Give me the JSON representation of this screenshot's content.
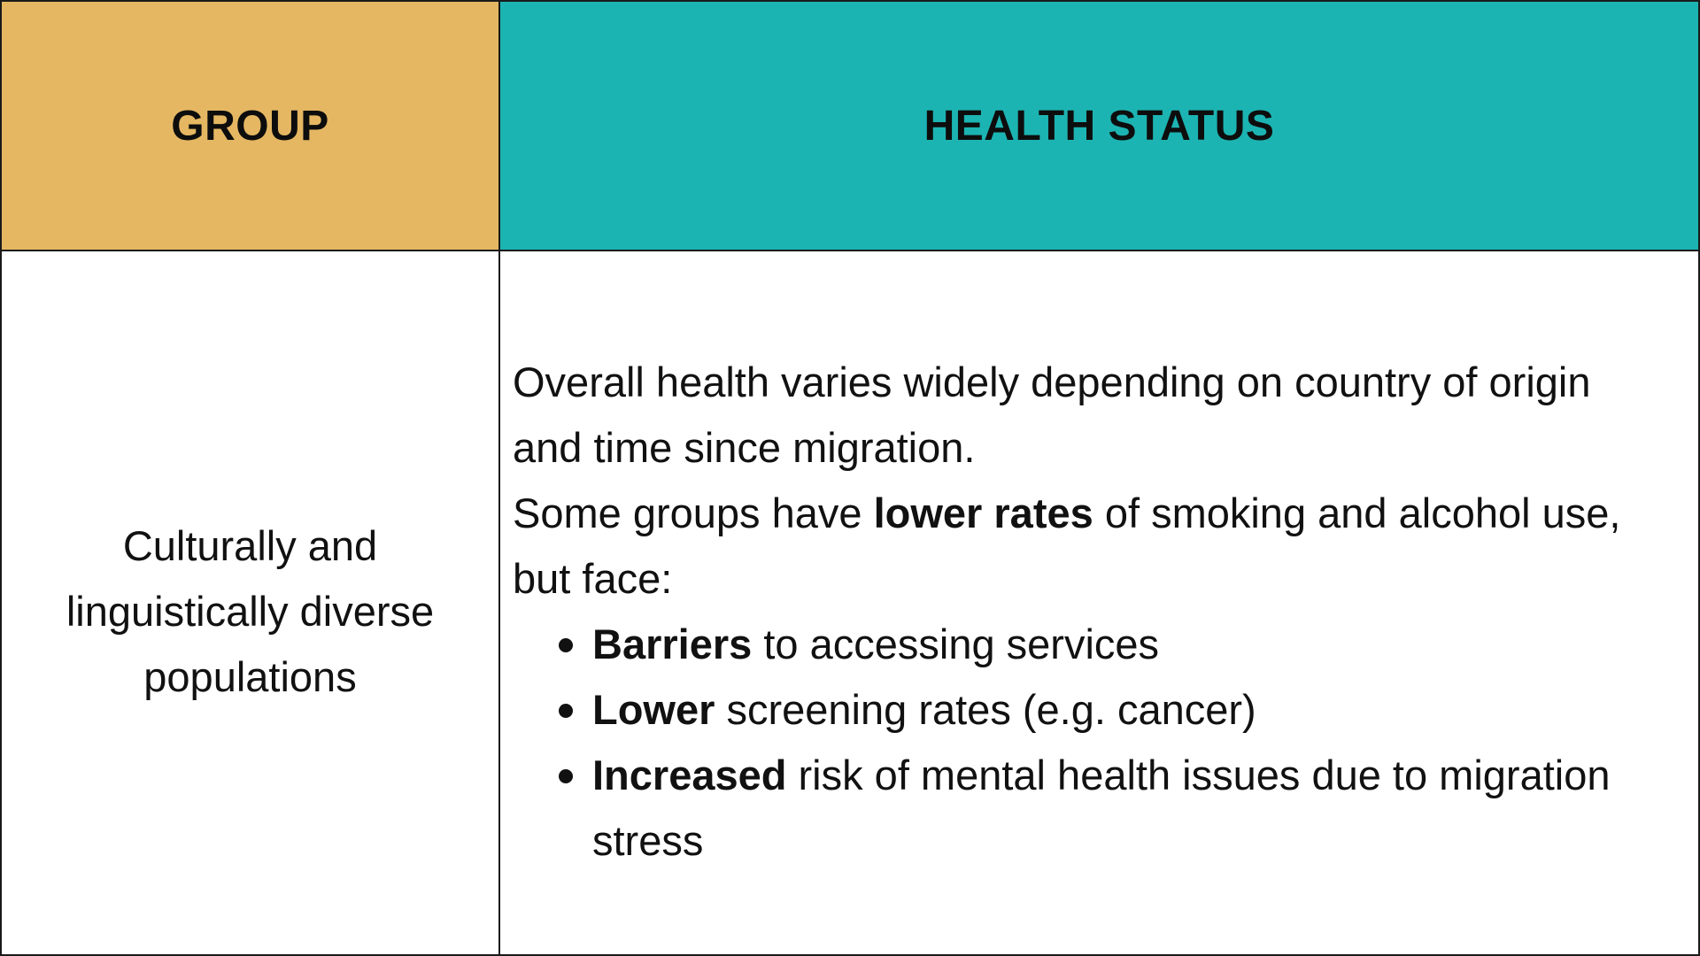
{
  "header": {
    "group_label": "GROUP",
    "status_label": "HEALTH STATUS"
  },
  "row": {
    "group": "Culturally and linguistically diverse populations",
    "status": {
      "para1": "Overall health varies widely depending on country of origin and time since migration.",
      "para2_before": "Some groups have ",
      "para2_bold": "lower rates",
      "para2_after": " of smoking and alcohol use, but face:",
      "bullets": [
        {
          "bold": "Barriers",
          "rest": " to accessing services"
        },
        {
          "bold": "Lower",
          "rest": " screening rates (e.g. cancer)"
        },
        {
          "bold": "Increased",
          "rest": " risk of mental health issues due to migration stress"
        }
      ]
    }
  },
  "colors": {
    "group_header_bg": "#e5b762",
    "status_header_bg": "#1cb4b2",
    "border": "#1a1a1a"
  }
}
